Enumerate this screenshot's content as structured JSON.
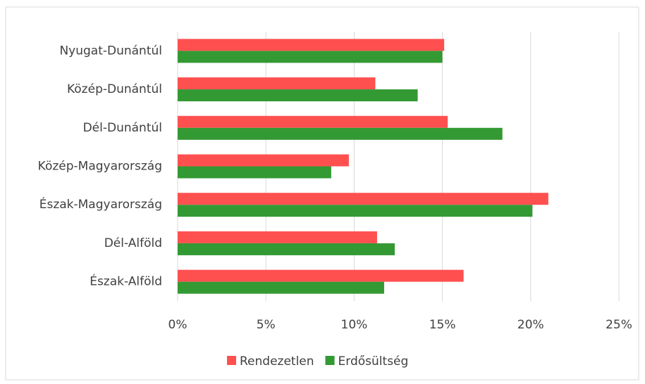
{
  "chart_data": {
    "type": "bar",
    "orientation": "horizontal",
    "categories": [
      "Nyugat-Dunántúl",
      "Közép-Dunántúl",
      "Dél-Dunántúl",
      "Közép-Magyarország",
      "Észak-Magyarország",
      "Dél-Alföld",
      "Észak-Alföld"
    ],
    "series": [
      {
        "name": "Rendezetlen",
        "color": "#ff5050",
        "values": [
          15.1,
          11.2,
          15.3,
          9.7,
          21.0,
          11.3,
          16.2
        ]
      },
      {
        "name": "Erdősültség",
        "color": "#339933",
        "values": [
          15.0,
          13.6,
          18.4,
          8.7,
          20.1,
          12.3,
          11.7
        ]
      }
    ],
    "xlim": [
      0,
      25
    ],
    "xticks": [
      {
        "value": 0,
        "label": "0%"
      },
      {
        "value": 5,
        "label": "5%"
      },
      {
        "value": 10,
        "label": "10%"
      },
      {
        "value": 15,
        "label": "15%"
      },
      {
        "value": 20,
        "label": "20%"
      },
      {
        "value": 25,
        "label": "25%"
      }
    ],
    "grid": true,
    "legend": "bottom"
  }
}
